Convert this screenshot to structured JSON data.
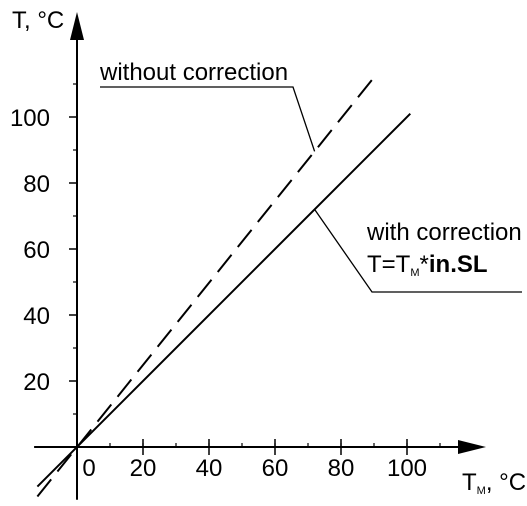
{
  "chart_data": {
    "type": "line",
    "title": "",
    "xlabel": {
      "main": "T",
      "sub": "M",
      "unit": ", °C"
    },
    "ylabel": {
      "main": "T, °C"
    },
    "xlim": [
      -13,
      117
    ],
    "ylim": [
      -16,
      122
    ],
    "x_ticks": [
      0,
      20,
      40,
      60,
      80,
      100
    ],
    "y_ticks": [
      20,
      40,
      60,
      80,
      100
    ],
    "grid": false,
    "series": [
      {
        "label": "without correction",
        "style": "dashed",
        "x": [
          -12,
          90
        ],
        "y": [
          -15,
          112
        ]
      },
      {
        "label": "with correction",
        "style": "solid",
        "x": [
          -12,
          101
        ],
        "y": [
          -12,
          101
        ]
      }
    ],
    "annotations": {
      "without_label": "without correction",
      "with_label": "with correction",
      "formula": {
        "lhs": "T=T",
        "sub": "M",
        "op": "*",
        "bold": "in.SL"
      }
    }
  }
}
